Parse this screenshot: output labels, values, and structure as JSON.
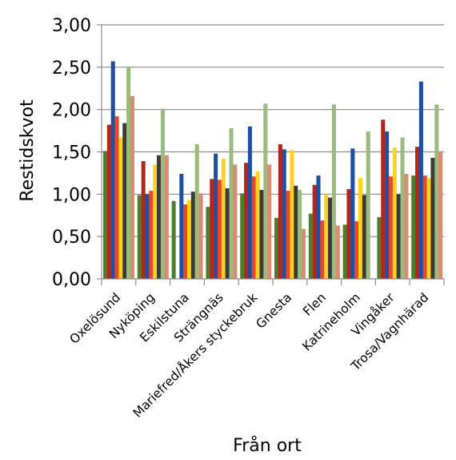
{
  "chart_data": {
    "type": "bar",
    "title": "",
    "xlabel": "Från ort",
    "ylabel": "Restidskvot",
    "ylim": [
      0,
      3
    ],
    "ytick_values": [
      0,
      0.5,
      1,
      1.5,
      2,
      2.5,
      3
    ],
    "ytick_labels": [
      "0,00",
      "0,50",
      "1,00",
      "1,50",
      "2,00",
      "2,50",
      "3,00"
    ],
    "grid": true,
    "legend": "none",
    "categories": [
      "Oxelösund",
      "Nyköping",
      "Eskilstuna",
      "Strängnäs",
      "Mariefred/Åkers styckebruk",
      "Gnesta",
      "Flen",
      "Katrineholm",
      "Vingåker",
      "Trosa/Vagnhärad"
    ],
    "series": [
      {
        "color": "#4f7e2b",
        "values": [
          1.51,
          0.99,
          0.92,
          0.85,
          1.01,
          0.72,
          0.77,
          0.64,
          0.73,
          1.22
        ]
      },
      {
        "color": "#b3261e",
        "values": [
          1.82,
          1.39,
          0.0,
          1.18,
          1.37,
          1.59,
          1.11,
          1.06,
          1.88,
          1.56
        ]
      },
      {
        "color": "#1f4fa0",
        "values": [
          2.57,
          1.0,
          1.24,
          1.48,
          1.8,
          1.53,
          1.22,
          1.54,
          1.74,
          2.33
        ]
      },
      {
        "color": "#e8472a",
        "values": [
          1.92,
          1.04,
          0.88,
          1.17,
          1.21,
          1.04,
          0.69,
          0.68,
          1.21,
          1.22
        ]
      },
      {
        "color": "#ffd21f",
        "values": [
          1.67,
          1.35,
          0.93,
          1.42,
          1.27,
          1.52,
          1.0,
          1.19,
          1.55,
          1.19
        ]
      },
      {
        "color": "#3a3a3a",
        "values": [
          1.84,
          1.46,
          1.03,
          1.07,
          1.05,
          1.1,
          0.96,
          0.99,
          1.0,
          1.43
        ]
      },
      {
        "color": "#9bbb7c",
        "values": [
          2.5,
          2.01,
          1.59,
          1.78,
          2.07,
          1.05,
          2.06,
          1.74,
          1.67,
          2.06
        ]
      },
      {
        "color": "#d98c6f",
        "values": [
          2.16,
          1.46,
          1.01,
          1.35,
          1.35,
          0.59,
          0.63,
          0.0,
          1.24,
          1.5
        ]
      }
    ]
  }
}
